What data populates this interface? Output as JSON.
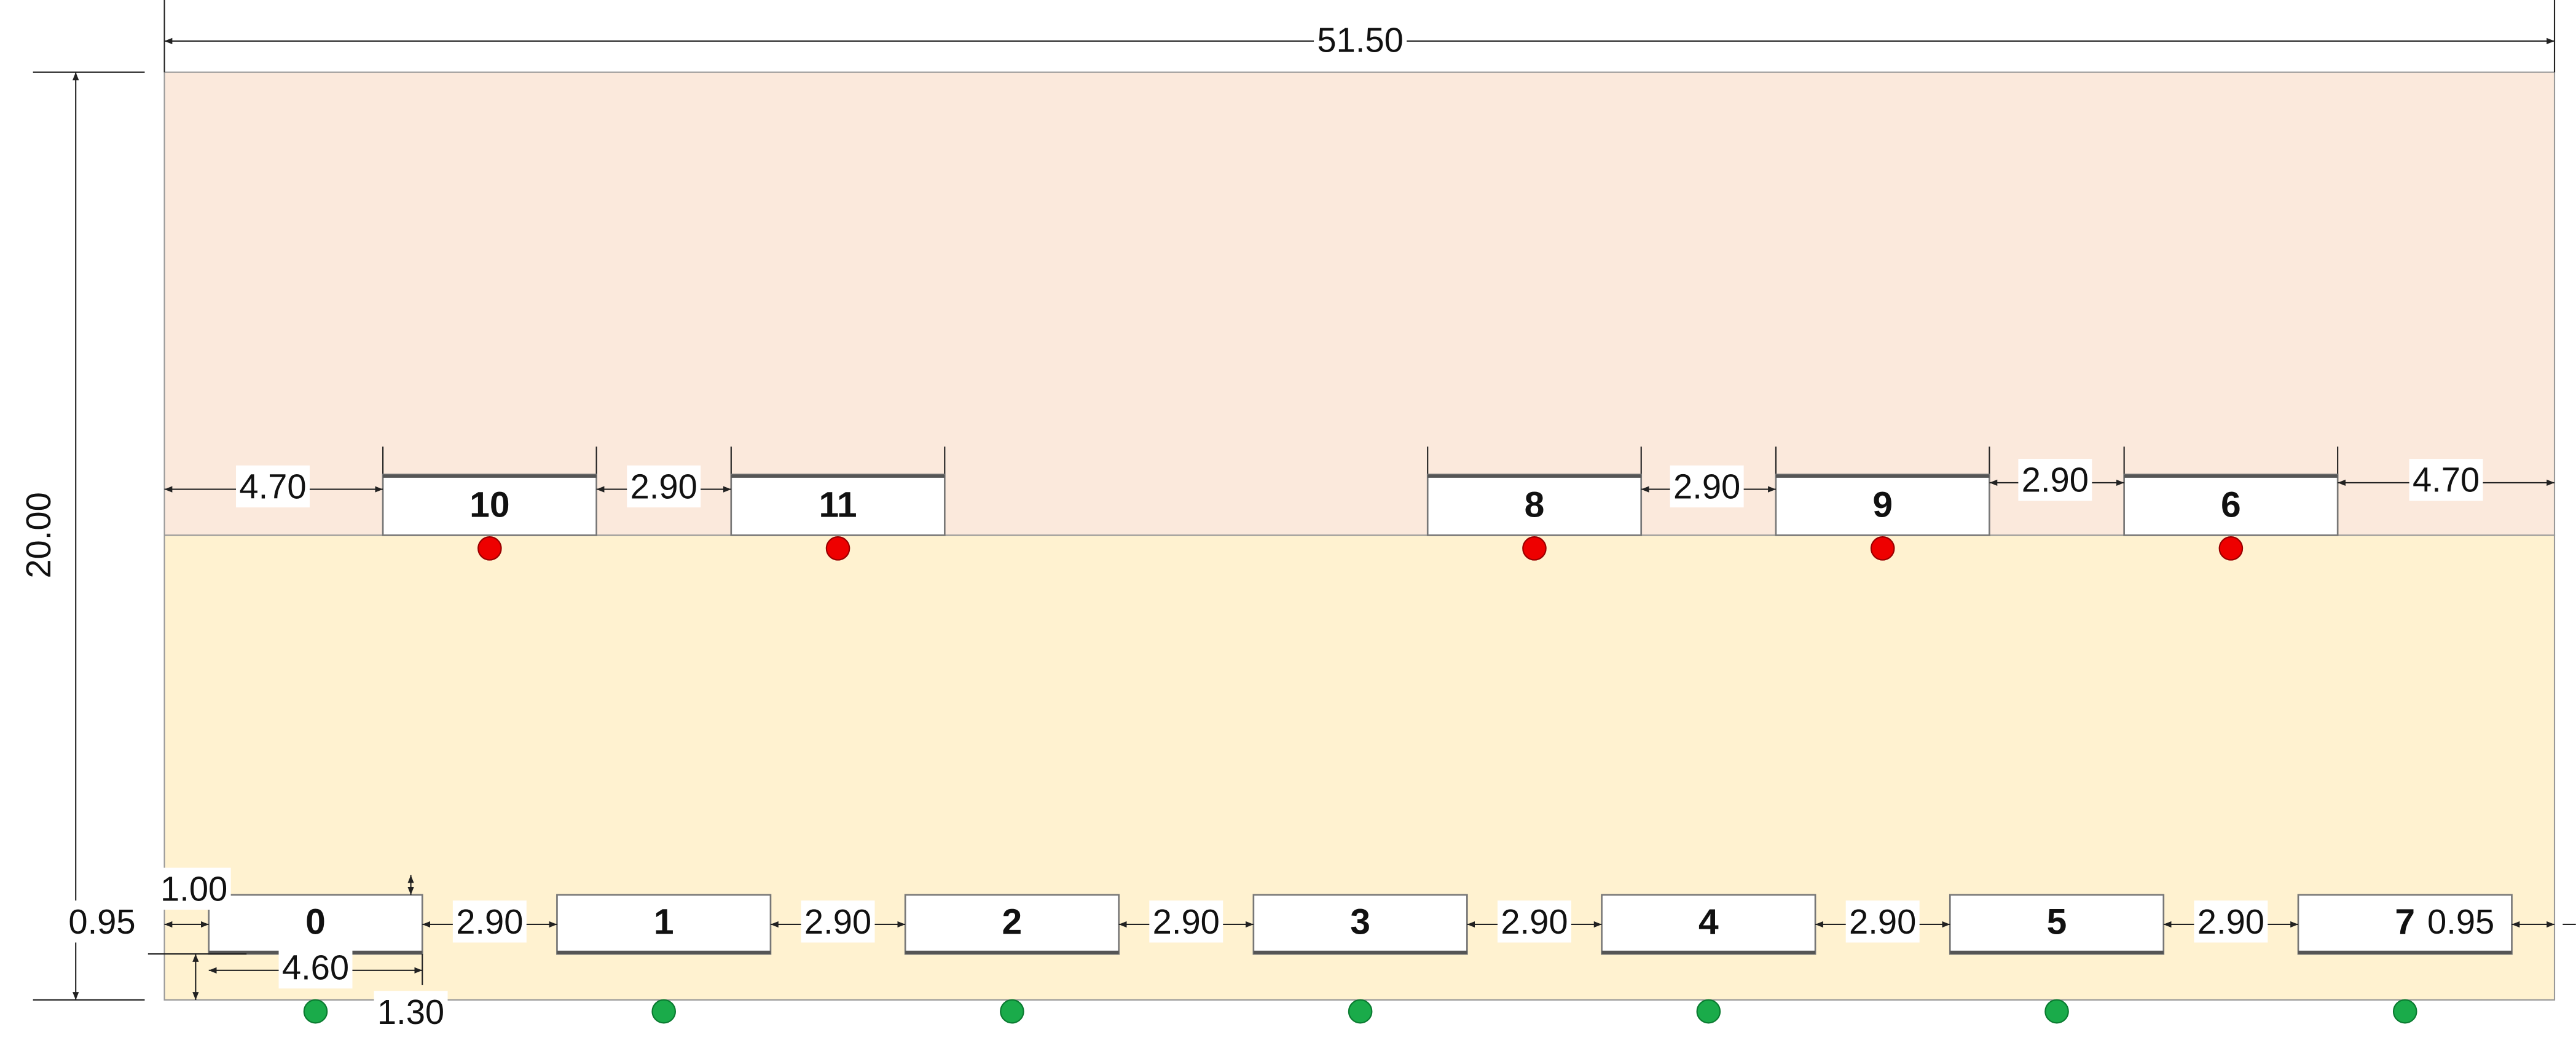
{
  "dimensions": {
    "total_width": "51.50",
    "total_height": "20.00",
    "top_row": [
      "4.70",
      "2.90",
      "2.90",
      "2.90",
      "4.70"
    ],
    "bottom_row": [
      "2.90",
      "2.90",
      "2.90",
      "2.90",
      "2.90",
      "2.90"
    ],
    "bottom_left_offset": "0.95",
    "bottom_right_offset": "0.95",
    "box_height": "1.00",
    "box_width": "4.60",
    "box_depth": "1.30"
  },
  "top_boxes": [
    "10",
    "11",
    "8",
    "9",
    "6"
  ],
  "bottom_boxes": [
    "0",
    "1",
    "2",
    "3",
    "4",
    "5",
    "7"
  ]
}
